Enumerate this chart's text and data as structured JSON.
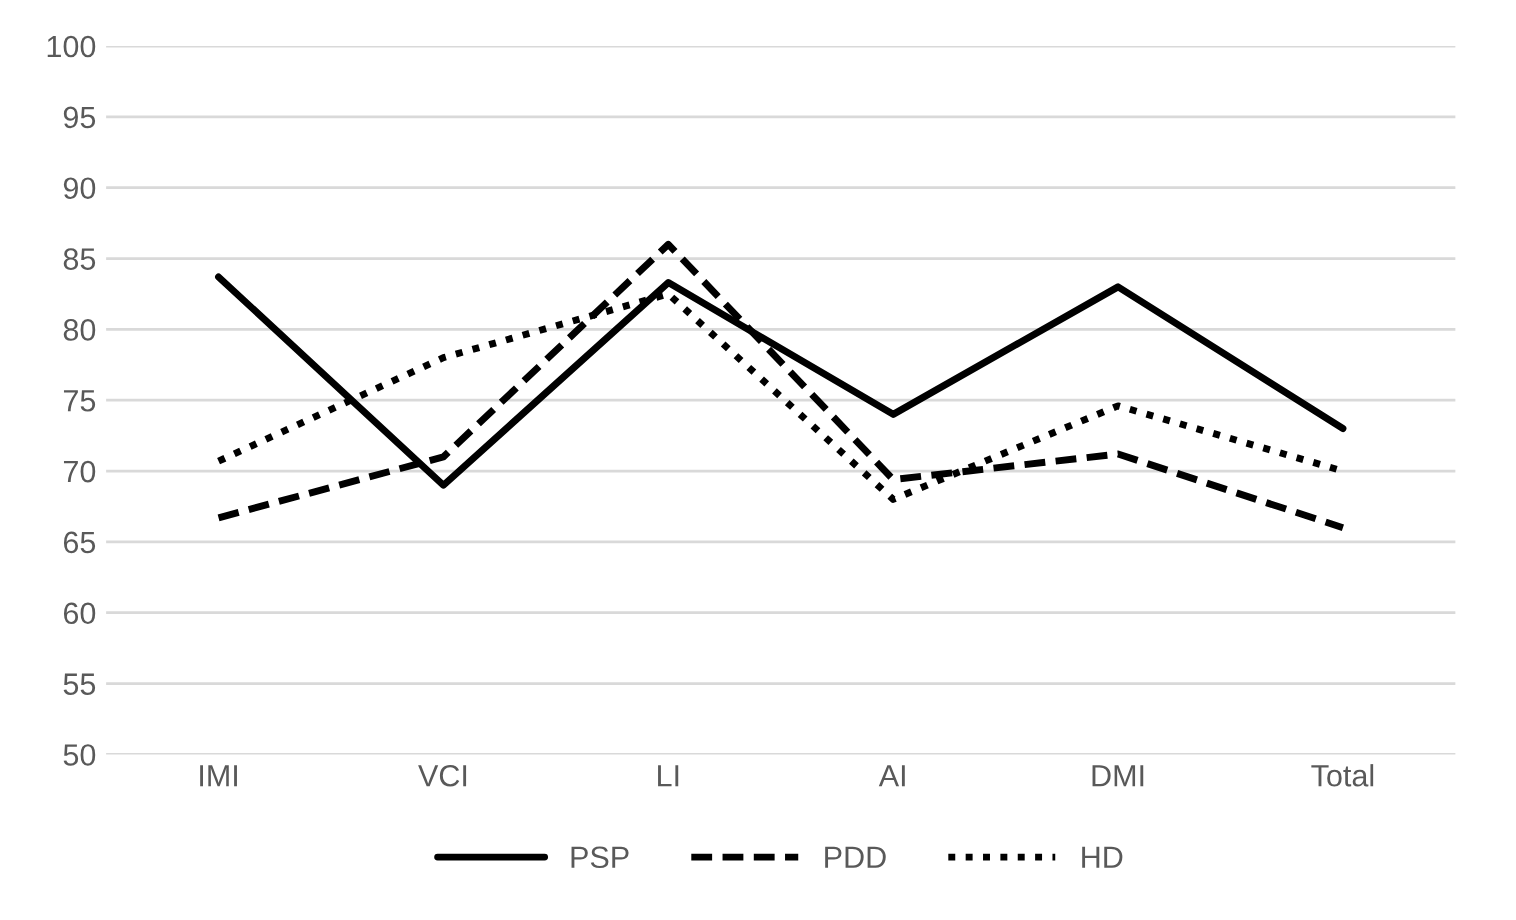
{
  "chart_data": {
    "type": "line",
    "categories": [
      "IMI",
      "VCI",
      "LI",
      "AI",
      "DMI",
      "Total"
    ],
    "series": [
      {
        "name": "PSP",
        "color": "#000000",
        "line_style": "solid",
        "values": [
          83.7,
          69,
          83.3,
          74,
          83,
          73
        ]
      },
      {
        "name": "PDD",
        "color": "#000000",
        "line_style": "dashed",
        "values": [
          66.7,
          71,
          86,
          69.4,
          71.2,
          66
        ]
      },
      {
        "name": "HD",
        "color": "#000000",
        "line_style": "dotted",
        "values": [
          70.7,
          78,
          82.5,
          68,
          74.6,
          70
        ]
      }
    ],
    "ylim": [
      50,
      100
    ],
    "yticks": [
      50,
      55,
      60,
      65,
      70,
      75,
      80,
      85,
      90,
      95,
      100
    ],
    "grid": "y",
    "legend": "bottom",
    "marker": "none"
  }
}
